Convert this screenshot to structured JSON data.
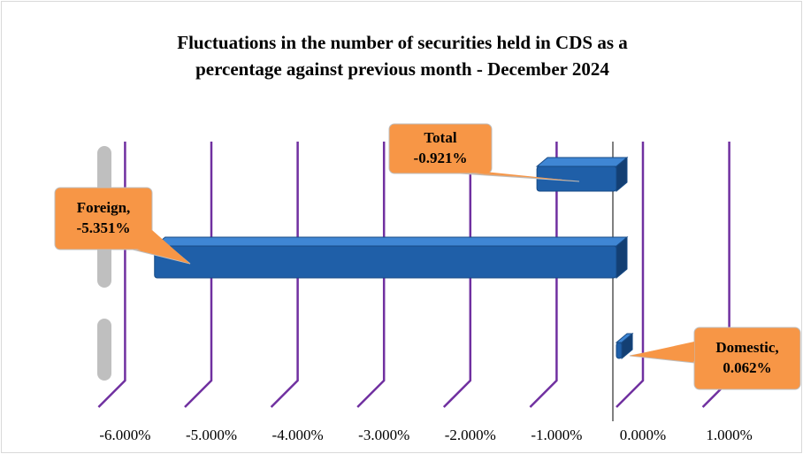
{
  "chart_data": {
    "type": "bar",
    "orientation": "horizontal",
    "title": "Fluctuations in the number of securities held in CDS as a percentage against previous month - December 2024",
    "categories": [
      "Total",
      "Foreign,",
      "Domestic,"
    ],
    "values": [
      -0.921,
      -5.351,
      0.062
    ],
    "value_labels": [
      "-0.921%",
      "-5.351%",
      "0.062%"
    ],
    "color": "#1f5fa8",
    "xlim": [
      -6,
      1
    ],
    "xticks": [
      {
        "value": -6,
        "label": "-6.000%"
      },
      {
        "value": -5,
        "label": "-5.000%"
      },
      {
        "value": -4,
        "label": "-4.000%"
      },
      {
        "value": -3,
        "label": "-3.000%"
      },
      {
        "value": -2,
        "label": "-2.000%"
      },
      {
        "value": -1,
        "label": "-1.000%"
      },
      {
        "value": 0,
        "label": "0.000%"
      },
      {
        "value": 1,
        "label": "1.000%"
      }
    ],
    "grid": true
  }
}
